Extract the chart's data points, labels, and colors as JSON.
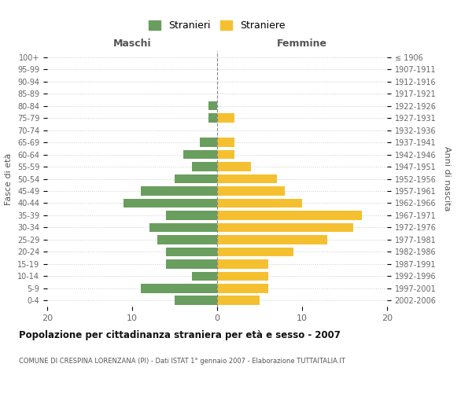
{
  "age_groups": [
    "0-4",
    "5-9",
    "10-14",
    "15-19",
    "20-24",
    "25-29",
    "30-34",
    "35-39",
    "40-44",
    "45-49",
    "50-54",
    "55-59",
    "60-64",
    "65-69",
    "70-74",
    "75-79",
    "80-84",
    "85-89",
    "90-94",
    "95-99",
    "100+"
  ],
  "birth_years": [
    "2002-2006",
    "1997-2001",
    "1992-1996",
    "1987-1991",
    "1982-1986",
    "1977-1981",
    "1972-1976",
    "1967-1971",
    "1962-1966",
    "1957-1961",
    "1952-1956",
    "1947-1951",
    "1942-1946",
    "1937-1941",
    "1932-1936",
    "1927-1931",
    "1922-1926",
    "1917-1921",
    "1912-1916",
    "1907-1911",
    "≤ 1906"
  ],
  "males": [
    5,
    9,
    3,
    6,
    6,
    7,
    8,
    6,
    11,
    9,
    5,
    3,
    4,
    2,
    0,
    1,
    1,
    0,
    0,
    0,
    0
  ],
  "females": [
    5,
    6,
    6,
    6,
    9,
    13,
    16,
    17,
    10,
    8,
    7,
    4,
    2,
    2,
    0,
    2,
    0,
    0,
    0,
    0,
    0
  ],
  "male_color": "#6a9e5e",
  "female_color": "#f5c030",
  "background_color": "#ffffff",
  "grid_color": "#cccccc",
  "bar_height": 0.75,
  "xlim": 20,
  "title": "Popolazione per cittadinanza straniera per età e sesso - 2007",
  "subtitle": "COMUNE DI CRESPINA LORENZANA (PI) - Dati ISTAT 1° gennaio 2007 - Elaborazione TUTTAITALIA.IT",
  "xlabel_left": "Maschi",
  "xlabel_right": "Femmine",
  "ylabel_left": "Fasce di età",
  "ylabel_right": "Anni di nascita",
  "legend_stranieri": "Stranieri",
  "legend_straniere": "Straniere"
}
